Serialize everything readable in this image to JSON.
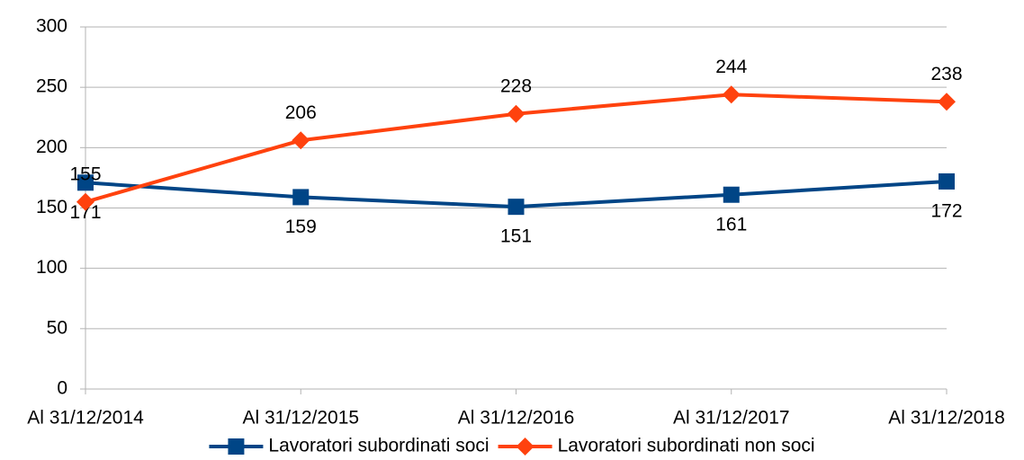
{
  "chart_data": {
    "type": "line",
    "categories": [
      "Al 31/12/2014",
      "Al 31/12/2015",
      "Al 31/12/2016",
      "Al 31/12/2017",
      "Al 31/12/2018"
    ],
    "series": [
      {
        "name": "Lavoratori subordinati soci",
        "color": "#004586",
        "marker": "square",
        "values": [
          171,
          159,
          151,
          161,
          172
        ]
      },
      {
        "name": "Lavoratori subordinati non soci",
        "color": "#ff420e",
        "marker": "diamond",
        "values": [
          155,
          206,
          228,
          244,
          238
        ]
      }
    ],
    "ylim": [
      0,
      300
    ],
    "yticks": [
      0,
      50,
      100,
      150,
      200,
      250,
      300
    ],
    "grid": true,
    "legend": "bottom"
  }
}
